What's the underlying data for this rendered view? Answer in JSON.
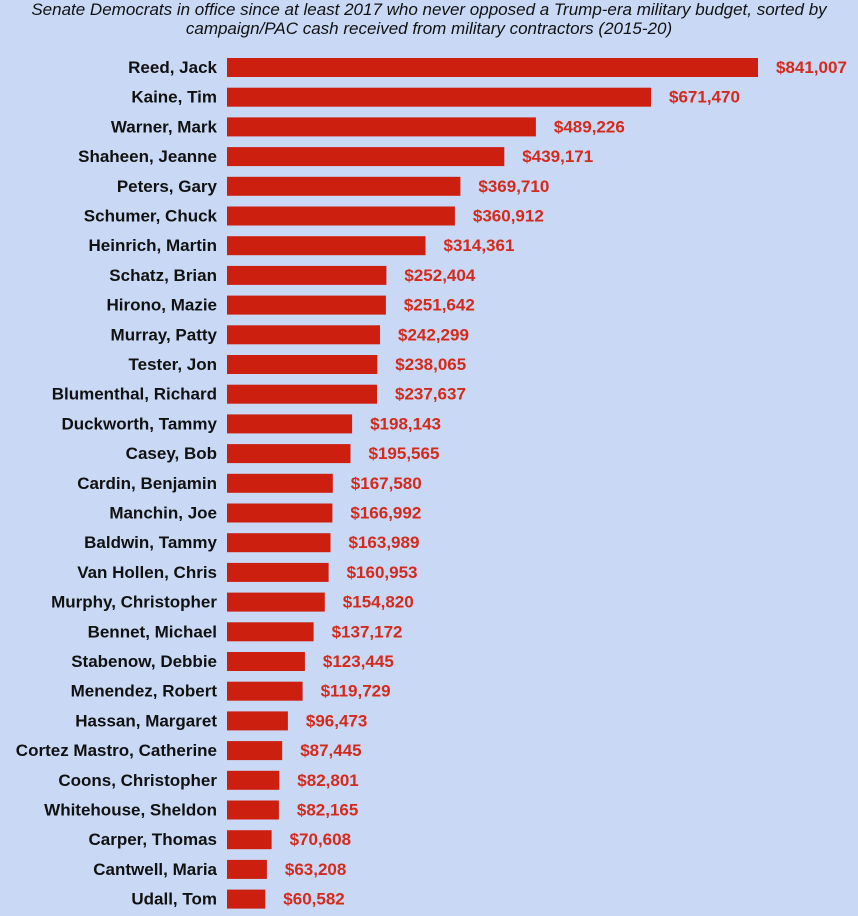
{
  "colors": {
    "background": "#c9d9f5",
    "bar": "#cc1f10",
    "value_label": "#d42a1c"
  },
  "chart_data": {
    "type": "bar",
    "orientation": "horizontal",
    "title": "Senate Democrats in office since at least 2017 who never opposed a Trump-era military budget, sorted by campaign/PAC cash received from military contractors (2015-20)",
    "xlabel": "",
    "ylabel": "",
    "grid": false,
    "legend": "none",
    "xlim": [
      0,
      841007
    ],
    "categories": [
      "Reed, Jack",
      "Kaine, Tim",
      "Warner, Mark",
      "Shaheen, Jeanne",
      "Peters, Gary",
      "Schumer, Chuck",
      "Heinrich, Martin",
      "Schatz, Brian",
      "Hirono, Mazie",
      "Murray, Patty",
      "Tester, Jon",
      "Blumenthal, Richard",
      "Duckworth, Tammy",
      "Casey, Bob",
      "Cardin, Benjamin",
      "Manchin, Joe",
      "Baldwin, Tammy",
      "Van Hollen, Chris",
      "Murphy, Christopher",
      "Bennet, Michael",
      "Stabenow, Debbie",
      "Menendez, Robert",
      "Hassan, Margaret",
      "Cortez Mastro, Catherine",
      "Coons, Christopher",
      "Whitehouse, Sheldon",
      "Carper, Thomas",
      "Cantwell, Maria",
      "Udall, Tom"
    ],
    "values": [
      841007,
      671470,
      489226,
      439171,
      369710,
      360912,
      314361,
      252404,
      251642,
      242299,
      238065,
      237637,
      198143,
      195565,
      167580,
      166992,
      163989,
      160953,
      154820,
      137172,
      123445,
      119729,
      96473,
      87445,
      82801,
      82165,
      70608,
      63208,
      60582
    ],
    "value_labels": [
      "$841,007",
      "$671,470",
      "$489,226",
      "$439,171",
      "$369,710",
      "$360,912",
      "$314,361",
      "$252,404",
      "$251,642",
      "$242,299",
      "$238,065",
      "$237,637",
      "$198,143",
      "$195,565",
      "$167,580",
      "$166,992",
      "$163,989",
      "$160,953",
      "$154,820",
      "$137,172",
      "$123,445",
      "$119,729",
      "$96,473",
      "$87,445",
      "$82,801",
      "$82,165",
      "$70,608",
      "$63,208",
      "$60,582"
    ]
  }
}
